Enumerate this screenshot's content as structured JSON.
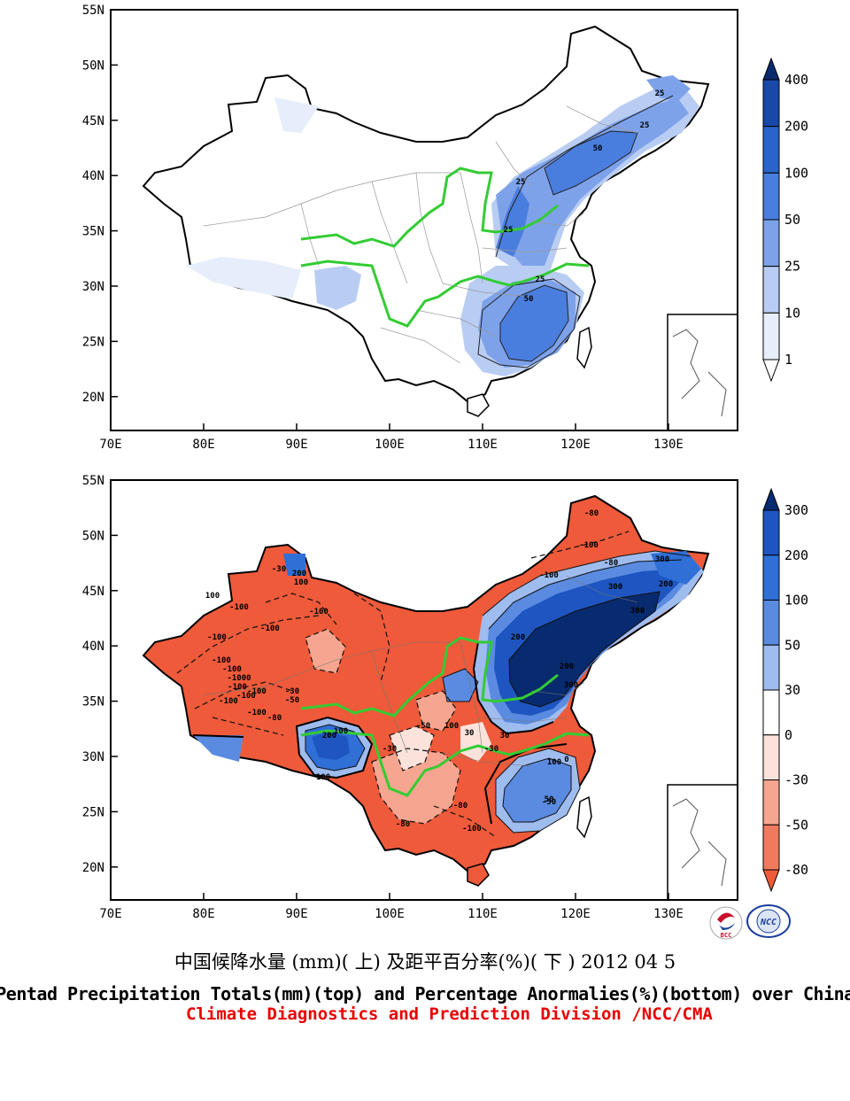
{
  "axes": {
    "lat_ticks": [
      "55N",
      "50N",
      "45N",
      "40N",
      "35N",
      "30N",
      "25N",
      "20N"
    ],
    "lon_ticks": [
      "70E",
      "80E",
      "90E",
      "100E",
      "110E",
      "120E",
      "130E"
    ]
  },
  "top_panel": {
    "legend_levels": [
      "400",
      "200",
      "100",
      "50",
      "25",
      "10",
      "1"
    ],
    "legend_colors": [
      "#0a2a6e",
      "#1848a8",
      "#2a63c9",
      "#4a7ede",
      "#7ea2ea",
      "#b9cdf3",
      "#e6eefb",
      "#ffffff"
    ],
    "contour_labels": [
      "25",
      "25",
      "25",
      "50",
      "25",
      "25",
      "50"
    ]
  },
  "bottom_panel": {
    "legend_levels": [
      "300",
      "200",
      "100",
      "50",
      "30",
      "0",
      "-30",
      "-50",
      "-80"
    ],
    "legend_colors": [
      "#082a6e",
      "#1e55c0",
      "#2f6fd6",
      "#5a8be0",
      "#9fbcef",
      "#ffffff",
      "#fbe3dc",
      "#f6a690",
      "#f07a5e",
      "#ee5a3a"
    ],
    "contour_labels": [
      "-80",
      "-100",
      "-80",
      "-100",
      "300",
      "200",
      "-30",
      "200",
      "100",
      "100",
      "-100",
      "-100",
      "-100",
      "-100",
      "-100",
      "-100",
      "-1000",
      "-100",
      "-100",
      "-100",
      "-100",
      "-30",
      "-50",
      "-80",
      "-100",
      "100",
      "200",
      "100",
      "-30",
      "-50",
      "100",
      "30",
      "300",
      "200",
      "300",
      "-30",
      "30",
      "50",
      "0",
      "100",
      "-80",
      "-100",
      "-80",
      "300",
      "-50",
      "200"
    ]
  },
  "logos": [
    {
      "label": "BCC",
      "color": "#c8102e"
    },
    {
      "label": "NCC",
      "color": "#1a3d9c"
    }
  ],
  "captions": {
    "chinese": "中国候降水量 (mm)( 上) 及距平百分率(%)( 下 ) 2012 04 5",
    "english": "Pentad Precipitation Totals(mm)(top) and Percentage Anormalies(%)(bottom) over China",
    "organization": "Climate Diagnostics and Prediction Division /NCC/CMA"
  },
  "colors": {
    "river": "#33cc33",
    "caption_org": "#e80000"
  }
}
